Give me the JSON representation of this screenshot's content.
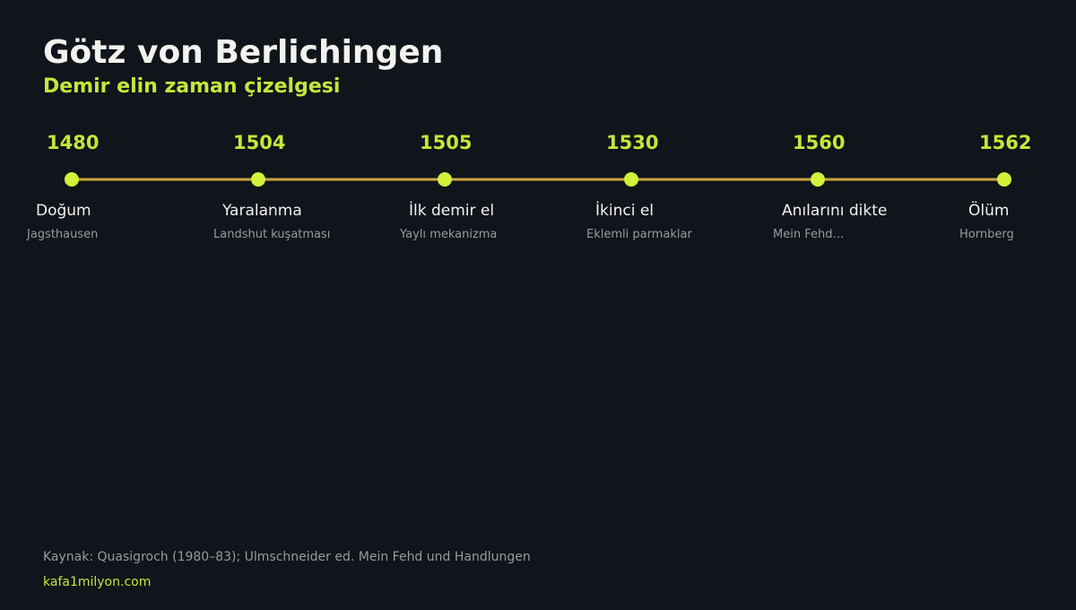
{
  "header": {
    "title": "Götz von Berlichingen",
    "subtitle": "Demir elin zaman çizelgesi"
  },
  "nodes": [
    {
      "year": "1480",
      "label": "Doğum",
      "detail": "Jagsthausen"
    },
    {
      "year": "1504",
      "label": "Yaralanma",
      "detail": "Landshut kuşatması"
    },
    {
      "year": "1505",
      "label": "İlk demir el",
      "detail": "Yaylı mekanizma"
    },
    {
      "year": "1530",
      "label": "İkinci el",
      "detail": "Eklemli parmaklar"
    },
    {
      "year": "1560",
      "label": "Anılarını dikte",
      "detail": "Mein Fehd…"
    },
    {
      "year": "1562",
      "label": "Ölüm",
      "detail": "Hornberg"
    }
  ],
  "footer": {
    "source": "Kaynak: Quasigroch (1980–83); Ulmschneider ed. Mein Fehd und Handlungen",
    "site": "kafa1milyon.com"
  }
}
